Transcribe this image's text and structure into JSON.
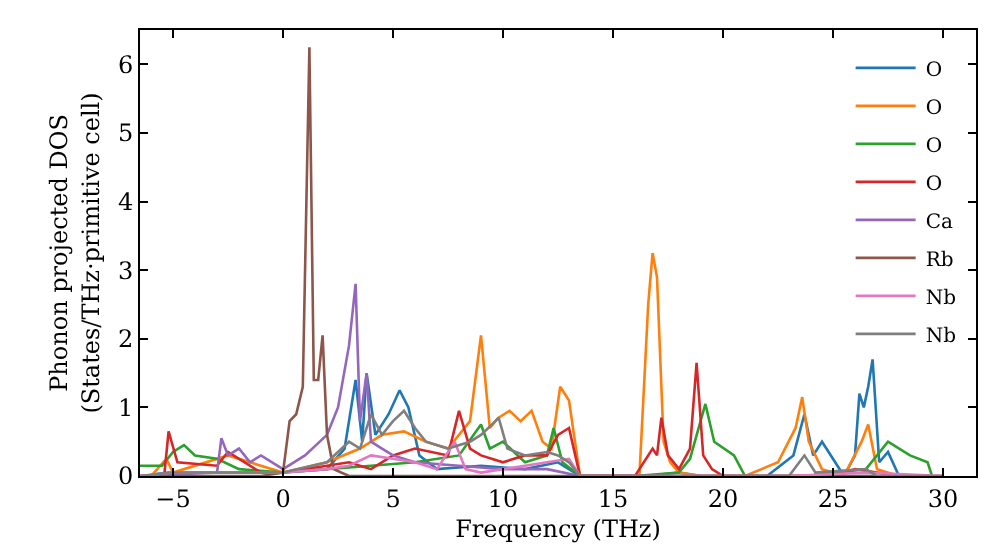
{
  "chart_data": {
    "type": "line",
    "xlabel": "Frequency (THz)",
    "ylabel": "Phonon projected DOS\n(States/THz·primitive cell)",
    "xlim": [
      -6.5,
      31.5
    ],
    "ylim": [
      0,
      6.5
    ],
    "xticks": [
      -5,
      0,
      5,
      10,
      15,
      20,
      25,
      30
    ],
    "yticks": [
      0,
      1,
      2,
      3,
      4,
      5,
      6
    ],
    "legend": "top right",
    "marker": "none",
    "line_style": "solid",
    "series": [
      {
        "name": "O",
        "color": "#1f77b4",
        "x": [
          -6,
          -5.2,
          -3,
          0,
          2,
          2.8,
          3.3,
          3.6,
          3.8,
          4.2,
          4.8,
          5.3,
          5.7,
          6.2,
          7,
          9,
          11,
          12.5,
          13.5,
          16.5,
          18,
          19,
          22,
          23.2,
          23.7,
          24.1,
          24.5,
          25.5,
          26,
          26.2,
          26.4,
          26.6,
          26.8,
          27.1,
          27.5,
          28,
          29
        ],
        "values": [
          0.02,
          0.05,
          0.05,
          0.05,
          0.1,
          0.4,
          1.4,
          0.5,
          1.5,
          0.6,
          0.9,
          1.25,
          1.0,
          0.3,
          0.1,
          0.15,
          0.1,
          0.2,
          0,
          0,
          0.05,
          0,
          0,
          0.3,
          0.9,
          0.3,
          0.5,
          0,
          0.3,
          1.2,
          1.0,
          1.3,
          1.7,
          0.2,
          0.35,
          0,
          0
        ]
      },
      {
        "name": "O",
        "color": "#ff7f0e",
        "x": [
          -6,
          -5.3,
          -5,
          -2.5,
          0,
          2,
          3.5,
          4.5,
          5.5,
          6.5,
          7.5,
          8.5,
          9,
          9.4,
          9.8,
          10.3,
          10.8,
          11.3,
          11.8,
          12.2,
          12.6,
          13,
          13.5,
          16.2,
          16.6,
          16.8,
          17,
          17.3,
          17.6,
          18,
          19,
          21,
          22.5,
          23.3,
          23.6,
          23.9,
          24.5,
          25.5,
          26.3,
          26.6,
          27,
          28
        ],
        "values": [
          0,
          0.25,
          0.05,
          0.3,
          0.05,
          0.2,
          0.4,
          0.6,
          0.65,
          0.5,
          0.4,
          0.8,
          2.05,
          0.7,
          0.85,
          0.95,
          0.8,
          0.95,
          0.5,
          0.4,
          1.3,
          1.1,
          0,
          0,
          2.5,
          3.25,
          2.9,
          0.5,
          0.2,
          0.05,
          0,
          0,
          0.2,
          0.7,
          1.15,
          0.5,
          0.1,
          0,
          0.5,
          0.75,
          0.1,
          0
        ]
      },
      {
        "name": "O",
        "color": "#2ca02c",
        "x": [
          -6.5,
          -5.5,
          -5,
          -4.5,
          -4,
          -3,
          -2,
          0,
          2,
          4,
          6,
          8,
          9,
          9.4,
          10,
          11,
          12,
          12.3,
          12.7,
          13.5,
          16,
          18,
          18.5,
          19.2,
          19.6,
          20.5,
          21,
          24,
          26.5,
          27.5,
          28.5,
          29.3,
          29.5
        ],
        "values": [
          0.15,
          0.15,
          0.35,
          0.45,
          0.3,
          0.25,
          0.1,
          0.05,
          0.1,
          0.15,
          0.2,
          0.3,
          0.75,
          0.4,
          0.5,
          0.2,
          0.3,
          0.7,
          0.2,
          0,
          0,
          0.05,
          0.25,
          1.05,
          0.5,
          0.3,
          0,
          0,
          0.1,
          0.5,
          0.3,
          0.2,
          0
        ]
      },
      {
        "name": "O",
        "color": "#d62728",
        "x": [
          -6.5,
          -5.4,
          -5.2,
          -4.8,
          -3,
          -2.5,
          -1,
          0,
          2,
          3,
          4,
          5,
          6,
          7.5,
          8,
          8.5,
          9,
          10,
          11,
          12,
          12.5,
          13,
          13.5,
          16,
          16.8,
          17,
          17.2,
          17.5,
          18,
          18.5,
          18.8,
          19.1,
          19.5,
          20,
          25,
          26,
          27,
          28
        ],
        "values": [
          0,
          0,
          0.65,
          0.2,
          0.15,
          0.35,
          0.05,
          0.05,
          0.15,
          0.2,
          0.1,
          0.3,
          0.4,
          0.3,
          0.95,
          0.4,
          0.3,
          0.2,
          0.3,
          0.3,
          0.6,
          0.7,
          0,
          0,
          0.4,
          0.3,
          0.85,
          0.3,
          0.1,
          0.4,
          1.65,
          0.3,
          0.1,
          0,
          0,
          0.1,
          0.05,
          0
        ]
      },
      {
        "name": "Ca",
        "color": "#9467bd",
        "x": [
          -6.5,
          -3,
          -2.8,
          -2.5,
          -2,
          -1.5,
          -1,
          0,
          1,
          2,
          2.5,
          3,
          3.3,
          3.5,
          3.8,
          4,
          4.5,
          5,
          6,
          8,
          10,
          12,
          13.5,
          30
        ],
        "values": [
          0,
          0.05,
          0.55,
          0.3,
          0.4,
          0.2,
          0.3,
          0.1,
          0.3,
          0.6,
          1.0,
          1.9,
          2.8,
          0.8,
          1.5,
          0.5,
          0.4,
          0.3,
          0.2,
          0.15,
          0.1,
          0.1,
          0,
          0
        ]
      },
      {
        "name": "Rb",
        "color": "#8c564b",
        "x": [
          -6.5,
          -1,
          0,
          0.3,
          0.6,
          0.9,
          1.2,
          1.4,
          1.6,
          1.8,
          2.0,
          2.3,
          3,
          13.5,
          30
        ],
        "values": [
          0,
          0,
          0.05,
          0.8,
          0.9,
          1.3,
          6.25,
          1.4,
          1.4,
          2.05,
          0.6,
          0.1,
          0,
          0,
          0
        ]
      },
      {
        "name": "Nb",
        "color": "#e377c2",
        "x": [
          -6.5,
          -5,
          0,
          2,
          3,
          4,
          5,
          6,
          7,
          7.8,
          8.3,
          9,
          10,
          11,
          12,
          13,
          13.5,
          23,
          26.5,
          30
        ],
        "values": [
          0,
          0.05,
          0.05,
          0.1,
          0.15,
          0.3,
          0.25,
          0.2,
          0.1,
          0.5,
          0.1,
          0.05,
          0.1,
          0.15,
          0.2,
          0.25,
          0,
          0,
          0.05,
          0
        ]
      },
      {
        "name": "Nb",
        "color": "#7f7f7f",
        "x": [
          -6.5,
          -5,
          0,
          2,
          3,
          3.5,
          4,
          4.5,
          5,
          5.5,
          6,
          6.5,
          7.5,
          8.5,
          9,
          9.5,
          9.8,
          10.2,
          11,
          12,
          12.5,
          13,
          13.5,
          23,
          23.7,
          24.2,
          26.5,
          27,
          30
        ],
        "values": [
          0,
          0.05,
          0.05,
          0.2,
          0.5,
          0.4,
          0.9,
          0.6,
          0.8,
          0.95,
          0.7,
          0.5,
          0.4,
          0.5,
          0.6,
          0.75,
          0.85,
          0.4,
          0.3,
          0.35,
          0.3,
          0.2,
          0,
          0,
          0.3,
          0.05,
          0.1,
          0,
          0
        ]
      }
    ]
  }
}
